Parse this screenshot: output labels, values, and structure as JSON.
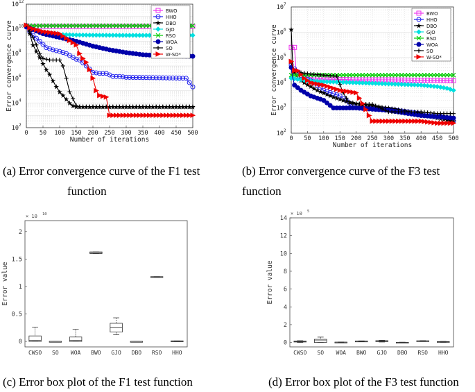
{
  "chart_data": [
    {
      "type": "line",
      "title": "",
      "caption_line1": "(a) Error convergence curve of the F1 test",
      "caption_line2": "function",
      "xlabel": "Number of iterations",
      "ylabel": "Error convergence curve",
      "yscale": "log",
      "xlim": [
        0,
        500
      ],
      "ylim": [
        100,
        1000000000000
      ],
      "xticks": [
        "0",
        "50",
        "100",
        "150",
        "200",
        "250",
        "300",
        "350",
        "400",
        "450",
        "500"
      ],
      "yticks": [
        {
          "exp": "2"
        },
        {
          "exp": "4"
        },
        {
          "exp": "6"
        },
        {
          "exp": "8"
        },
        {
          "exp": "10"
        },
        {
          "exp": "12"
        }
      ],
      "ytick_base": "10",
      "legend_position": "top-right",
      "series": [
        {
          "name": "BWO",
          "color": "#ee33ee",
          "marker": "square",
          "x": [
            0,
            10,
            500
          ],
          "y": [
            18000000000.0,
            16000000000.0,
            16000000000.0
          ]
        },
        {
          "name": "HHO",
          "color": "#2222ee",
          "marker": "circle",
          "x": [
            0,
            20,
            40,
            60,
            80,
            100,
            120,
            140,
            150,
            160,
            180,
            200,
            220,
            240,
            260,
            280,
            300,
            400,
            480,
            500
          ],
          "y": [
            14000000000.0,
            3000000000.0,
            1000000000.0,
            300000000.0,
            200000000.0,
            150000000.0,
            100000000.0,
            50000000.0,
            35000000.0,
            30000000.0,
            10000000.0,
            3000000.0,
            2500000.0,
            2500000.0,
            1400000.0,
            1400000.0,
            1200000.0,
            1100000.0,
            1000000.0,
            200000.0
          ]
        },
        {
          "name": "DBO",
          "color": "#000000",
          "marker": "star",
          "x": [
            0,
            10,
            20,
            30,
            40,
            50,
            60,
            70,
            80,
            90,
            100,
            110,
            120,
            130,
            140,
            150,
            160,
            500
          ],
          "y": [
            20000000000.0,
            4000000000.0,
            500000000.0,
            150000000.0,
            50000000.0,
            15000000.0,
            5000000.0,
            2000000.0,
            600000.0,
            200000.0,
            80000.0,
            40000.0,
            20000.0,
            10000.0,
            6000.0,
            5000.0,
            5000.0,
            5000.0
          ]
        },
        {
          "name": "GJO",
          "color": "#00e0e0",
          "marker": "diamond",
          "x": [
            0,
            50,
            100,
            150,
            200,
            300,
            400,
            500
          ],
          "y": [
            15000000000.0,
            5000000000.0,
            3500000000.0,
            3200000000.0,
            3100000000.0,
            3000000000.0,
            3000000000.0,
            3000000000.0
          ]
        },
        {
          "name": "RSO",
          "color": "#00cc00",
          "marker": "x",
          "x": [
            0,
            500
          ],
          "y": [
            18000000000.0,
            18000000000.0
          ]
        },
        {
          "name": "WOA",
          "color": "#0000aa",
          "marker": "filled-circle",
          "x": [
            0,
            50,
            100,
            150,
            200,
            250,
            300,
            350,
            400,
            450,
            500
          ],
          "y": [
            15000000000.0,
            4000000000.0,
            2000000000.0,
            1000000000.0,
            400000000.0,
            200000000.0,
            120000000.0,
            80000000.0,
            70000000.0,
            65000000.0,
            60000000.0
          ]
        },
        {
          "name": "SO",
          "color": "#000000",
          "marker": "plus",
          "x": [
            0,
            20,
            30,
            40,
            50,
            60,
            70,
            100,
            110,
            120,
            130,
            150,
            160,
            500
          ],
          "y": [
            20000000000.0,
            2000000000.0,
            500000000.0,
            100000000.0,
            40000000.0,
            35000000.0,
            30000000.0,
            30000000.0,
            10000000.0,
            1000000.0,
            80000.0,
            6000.0,
            5000.0,
            5000.0
          ]
        },
        {
          "name": "W-SO*",
          "color": "#ee0000",
          "marker": "triangle-right",
          "x": [
            0,
            10,
            50,
            100,
            150,
            160,
            170,
            180,
            190,
            200,
            210,
            220,
            240,
            250,
            500
          ],
          "y": [
            20000000000.0,
            12000000000.0,
            6000000000.0,
            4000000000.0,
            500000000.0,
            100000000.0,
            40000000.0,
            20000000.0,
            5000000.0,
            1000000.0,
            100000.0,
            40000.0,
            30000.0,
            1000.0,
            1000.0
          ]
        }
      ]
    },
    {
      "type": "line",
      "title": "",
      "caption_line1": "(b) Error convergence curve of the F3 test",
      "caption_line2": "function",
      "xlabel": "Number of iterations",
      "ylabel": "Error convergence curve",
      "yscale": "log",
      "xlim": [
        0,
        500
      ],
      "ylim": [
        100,
        10000000
      ],
      "xticks": [
        "0",
        "50",
        "100",
        "150",
        "200",
        "250",
        "300",
        "350",
        "400",
        "450",
        "500"
      ],
      "yticks": [
        {
          "exp": "2"
        },
        {
          "exp": "3"
        },
        {
          "exp": "4"
        },
        {
          "exp": "5"
        },
        {
          "exp": "6"
        },
        {
          "exp": "7"
        }
      ],
      "ytick_base": "10",
      "legend_position": "top-right",
      "series": [
        {
          "name": "BWO",
          "color": "#ee33ee",
          "marker": "square",
          "x": [
            0,
            10,
            15,
            30,
            60,
            100,
            200,
            300,
            500
          ],
          "y": [
            250000.0,
            250000.0,
            30000.0,
            20000.0,
            16000.0,
            14000.0,
            13000.0,
            13000.0,
            12000.0
          ]
        },
        {
          "name": "HHO",
          "color": "#2222ee",
          "marker": "circle",
          "x": [
            0,
            20,
            40,
            60,
            100,
            150,
            200,
            250,
            300,
            400,
            450,
            480,
            500
          ],
          "y": [
            50000.0,
            25000.0,
            15000.0,
            12000.0,
            5000.0,
            3000.0,
            1000.0,
            1000.0,
            900.0,
            600.0,
            500.0,
            400.0,
            300.0
          ]
        },
        {
          "name": "DBO",
          "color": "#000000",
          "marker": "star",
          "x": [
            0,
            5,
            10,
            20,
            40,
            80,
            120,
            160,
            200,
            300,
            400,
            450,
            500
          ],
          "y": [
            1300000.0,
            40000.0,
            25000.0,
            15000.0,
            10000.0,
            5000.0,
            3000.0,
            2000.0,
            1500.0,
            1000.0,
            600.0,
            400.0,
            300.0
          ]
        },
        {
          "name": "GJO",
          "color": "#00e0e0",
          "marker": "diamond",
          "x": [
            0,
            50,
            100,
            200,
            300,
            400,
            450,
            480,
            500
          ],
          "y": [
            15000.0,
            12000.0,
            11000.0,
            10000.0,
            9000.0,
            8000.0,
            7000.0,
            6000.0,
            5000.0
          ]
        },
        {
          "name": "RSO",
          "color": "#00cc00",
          "marker": "x",
          "x": [
            0,
            500
          ],
          "y": [
            20000.0,
            20000.0
          ]
        },
        {
          "name": "WOA",
          "color": "#0000aa",
          "marker": "filled-circle",
          "x": [
            0,
            5,
            10,
            30,
            60,
            100,
            130,
            150,
            200,
            300,
            400,
            500
          ],
          "y": [
            40000.0,
            15000.0,
            8000.0,
            5000.0,
            3000.0,
            2000.0,
            1000.0,
            1000.0,
            1000.0,
            800.0,
            500.0,
            400.0
          ]
        },
        {
          "name": "SO",
          "color": "#000000",
          "marker": "plus",
          "x": [
            0,
            10,
            30,
            60,
            100,
            140,
            160,
            180,
            250,
            300,
            400,
            450,
            500
          ],
          "y": [
            60000.0,
            30000.0,
            25000.0,
            22000.0,
            20000.0,
            18000.0,
            4000.0,
            1500.0,
            1400.0,
            700.0,
            700.0,
            600.0,
            600.0
          ]
        },
        {
          "name": "W-SO*",
          "color": "#ee0000",
          "marker": "triangle-right",
          "x": [
            0,
            10,
            20,
            40,
            60,
            100,
            150,
            200,
            220,
            240,
            250,
            300,
            400,
            450,
            500
          ],
          "y": [
            70000.0,
            30000.0,
            30000.0,
            15000.0,
            10000.0,
            8000.0,
            5000.0,
            4000.0,
            1500.0,
            500.0,
            300.0,
            300.0,
            300.0,
            250.0,
            250.0
          ]
        }
      ]
    },
    {
      "type": "box",
      "title": "",
      "caption_line1": "(c) Error box plot of the F1 test function",
      "xlabel": "",
      "ylabel": "Error value",
      "exponent_label": "× 10",
      "exponent_sup": "10",
      "ylim": [
        -0.1,
        2.2
      ],
      "yticks": [
        "0",
        "0.5",
        "1",
        "1.5",
        "2"
      ],
      "categories": [
        "CWSO",
        "SO",
        "WOA",
        "BWO",
        "GJO",
        "DBO",
        "RSO",
        "HHO"
      ],
      "boxes": [
        {
          "min": 0,
          "q1": 0.0,
          "median": 0.02,
          "q3": 0.1,
          "max": 0.26
        },
        {
          "min": 0,
          "q1": 0,
          "median": 0,
          "q3": 0,
          "max": 0
        },
        {
          "min": 0,
          "q1": 0.0,
          "median": 0.02,
          "q3": 0.08,
          "max": 0.22
        },
        {
          "min": 1.6,
          "q1": 1.6,
          "median": 1.61,
          "q3": 1.63,
          "max": 1.63
        },
        {
          "min": 0.12,
          "q1": 0.17,
          "median": 0.25,
          "q3": 0.33,
          "max": 0.43
        },
        {
          "min": 0,
          "q1": 0,
          "median": 0,
          "q3": 0,
          "max": 0
        },
        {
          "min": 1.17,
          "q1": 1.17,
          "median": 1.17,
          "q3": 1.18,
          "max": 1.18
        },
        {
          "min": 0,
          "q1": 0,
          "median": 0.005,
          "q3": 0.01,
          "max": 0.01
        }
      ]
    },
    {
      "type": "box",
      "title": "",
      "caption_line1": "(d) Error box plot of the F3 test function",
      "xlabel": "",
      "ylabel": "Error value",
      "exponent_label": "× 10",
      "exponent_sup": "5",
      "ylim": [
        -0.5,
        14
      ],
      "yticks": [
        "0",
        "2",
        "4",
        "6",
        "8",
        "10",
        "12",
        "14"
      ],
      "categories": [
        "CWSO",
        "SO",
        "WOA",
        "BWO",
        "GJO",
        "DBO",
        "RSO",
        "HHO"
      ],
      "boxes": [
        {
          "min": 0,
          "q1": 0.05,
          "median": 0.1,
          "q3": 0.15,
          "max": 0.2
        },
        {
          "min": 0,
          "q1": 0.0,
          "median": 0.2,
          "q3": 0.35,
          "max": 0.6
        },
        {
          "min": 0,
          "q1": 0,
          "median": 0.02,
          "q3": 0.04,
          "max": 0.05
        },
        {
          "min": 0.1,
          "q1": 0.12,
          "median": 0.14,
          "q3": 0.16,
          "max": 0.18
        },
        {
          "min": 0.05,
          "q1": 0.1,
          "median": 0.15,
          "q3": 0.2,
          "max": 0.25
        },
        {
          "min": 0,
          "q1": 0,
          "median": 0.01,
          "q3": 0.02,
          "max": 0.03
        },
        {
          "min": 0.15,
          "q1": 0.17,
          "median": 0.18,
          "q3": 0.19,
          "max": 0.2
        },
        {
          "min": 0.02,
          "q1": 0.05,
          "median": 0.08,
          "q3": 0.1,
          "max": 0.12
        }
      ]
    }
  ]
}
